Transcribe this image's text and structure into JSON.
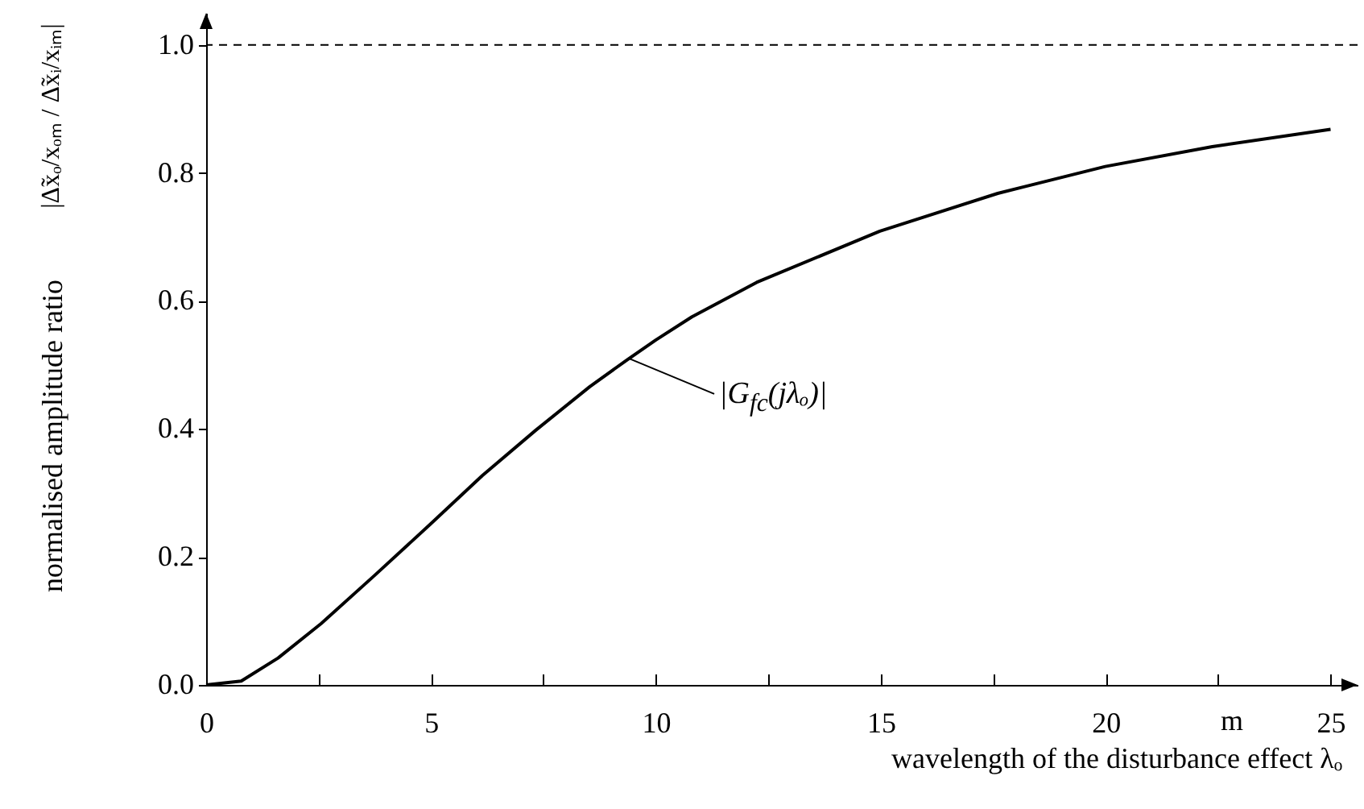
{
  "chart_data": {
    "type": "line",
    "xlabel": "wavelength of the disturbance effect λₒ",
    "ylabel": "normalised amplitude ratio",
    "x": [
      0,
      0.78,
      1.6,
      2.56,
      3.76,
      5,
      6.14,
      7.33,
      8.53,
      9.36,
      10,
      10.8,
      12.24,
      14.98,
      17.6,
      19.99,
      22.37,
      25
    ],
    "series": [
      {
        "color": "#000000",
        "values": [
          0,
          0.006,
          0.042,
          0.096,
          0.172,
          0.252,
          0.327,
          0.398,
          0.466,
          0.508,
          0.539,
          0.575,
          0.629,
          0.709,
          0.768,
          0.81,
          0.841,
          0.868
        ]
      }
    ],
    "xlim": [
      0,
      25.6
    ],
    "ylim": [
      0,
      1.05
    ],
    "xticks": [
      0,
      {
        "value": 2.5,
        "label": null
      },
      5,
      {
        "value": 7.5,
        "label": null
      },
      10,
      {
        "value": 12.5,
        "label": null
      },
      15,
      {
        "value": 17.5,
        "label": null
      },
      20,
      {
        "value": 22.5,
        "label": null
      },
      25
    ],
    "yticks": [
      {
        "value": 0,
        "label": "0.0"
      },
      0.2,
      0.4,
      0.6,
      0.8,
      {
        "value": 1,
        "label": "1.0"
      }
    ],
    "ref_lines": [
      {
        "axis": "y",
        "value": 1,
        "line_style": "dashed"
      }
    ],
    "grid": false,
    "marker": "none",
    "line_style": "solid",
    "annotations": [
      {
        "text": "|G$_{fc}$(jλₒ)|",
        "x": 9.4,
        "y": 0.51
      },
      "|Δ̃xₒ/xₒₘ / Δ̃xᵢ/xᵢₘ|",
      "m"
    ]
  }
}
